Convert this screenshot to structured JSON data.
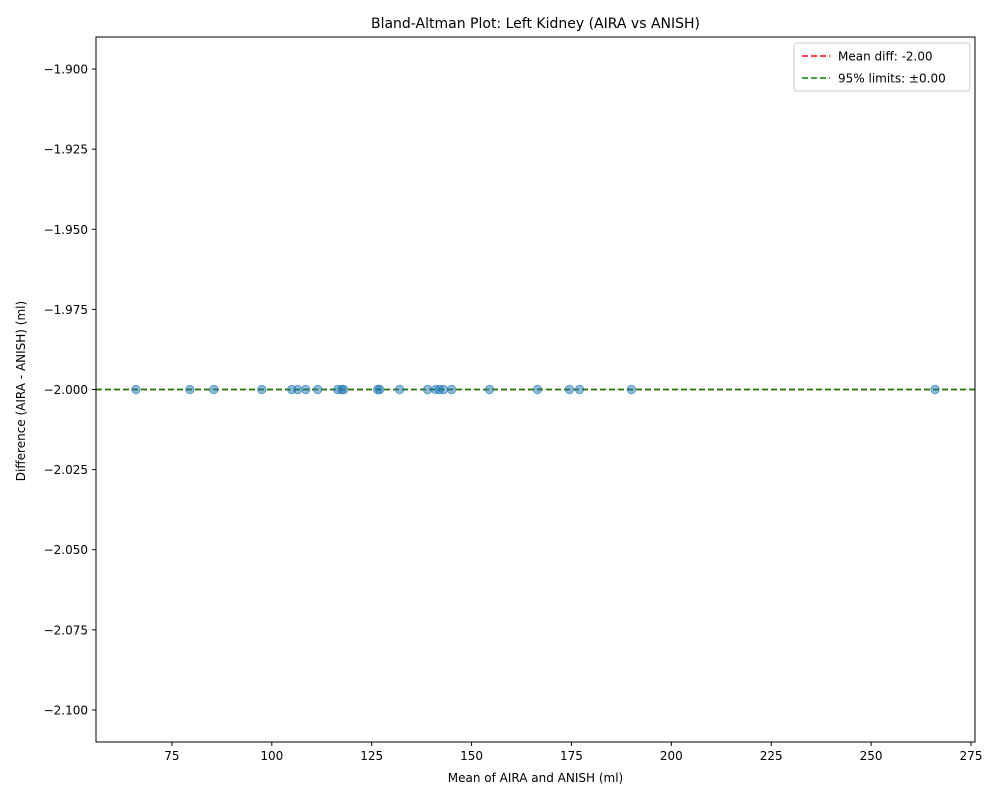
{
  "chart_data": {
    "type": "scatter",
    "title": "Bland-Altman Plot: Left Kidney (AIRA vs ANISH)",
    "xlabel": "Mean of AIRA and ANISH (ml)",
    "ylabel": "Difference (AIRA - ANISH) (ml)",
    "xlim": [
      56,
      276
    ],
    "ylim": [
      -2.11,
      -1.89
    ],
    "xticks": [
      75,
      100,
      125,
      150,
      175,
      200,
      225,
      250,
      275
    ],
    "xtick_labels": [
      "75",
      "100",
      "125",
      "150",
      "175",
      "200",
      "225",
      "250",
      "275"
    ],
    "yticks": [
      -1.9,
      -1.925,
      -1.95,
      -1.975,
      -2.0,
      -2.025,
      -2.05,
      -2.075,
      -2.1
    ],
    "ytick_labels": [
      "−1.900",
      "−1.925",
      "−1.950",
      "−1.975",
      "−2.000",
      "−2.025",
      "−2.050",
      "−2.075",
      "−2.100"
    ],
    "grid": false,
    "legend_position": "top-right",
    "points": {
      "x": [
        66,
        79.5,
        85.5,
        97.5,
        105,
        106.5,
        108.5,
        111.5,
        116.5,
        117.5,
        118,
        126.5,
        127,
        132,
        139,
        141,
        142,
        143,
        145,
        154.5,
        166.5,
        174.5,
        177,
        190,
        266
      ],
      "y": [
        -2,
        -2,
        -2,
        -2,
        -2,
        -2,
        -2,
        -2,
        -2,
        -2,
        -2,
        -2,
        -2,
        -2,
        -2,
        -2,
        -2,
        -2,
        -2,
        -2,
        -2,
        -2,
        -2,
        -2,
        -2
      ],
      "color": "#1f77b4"
    },
    "lines": [
      {
        "label": "Mean diff: -2.00",
        "y": -2.0,
        "color": "#ff0000",
        "style": "dashed"
      },
      {
        "label": "95% limits: ±0.00",
        "y": -2.0,
        "color": "#008000",
        "style": "dashed"
      }
    ]
  }
}
